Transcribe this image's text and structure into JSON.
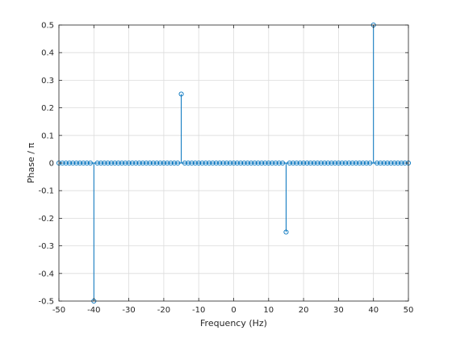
{
  "chart_data": {
    "type": "stem",
    "title": "",
    "xlabel": "Frequency (Hz)",
    "ylabel": "Phase / π",
    "xlim": [
      -50,
      50
    ],
    "ylim": [
      -0.5,
      0.5
    ],
    "grid": true,
    "xticks": [
      -50,
      -40,
      -30,
      -20,
      -10,
      0,
      10,
      20,
      30,
      40,
      50
    ],
    "xtick_labels": [
      "-50",
      "-40",
      "-30",
      "-20",
      "-10",
      "0",
      "10",
      "20",
      "30",
      "40",
      "50"
    ],
    "yticks": [
      -0.5,
      -0.4,
      -0.3,
      -0.2,
      -0.1,
      0,
      0.1,
      0.2,
      0.3,
      0.4,
      0.5
    ],
    "ytick_labels": [
      "-0.5",
      "-0.4",
      "-0.3",
      "-0.2",
      "-0.1",
      "0",
      "0.1",
      "0.2",
      "0.3",
      "0.4",
      "0.5"
    ],
    "series_color": "#0072bd",
    "x_start": -50,
    "x_end": 50,
    "x_step": 1,
    "baseline": 0,
    "nonzero_points": [
      {
        "x": -40,
        "y": -0.5
      },
      {
        "x": -15,
        "y": 0.25
      },
      {
        "x": 15,
        "y": -0.25
      },
      {
        "x": 40,
        "y": 0.5
      }
    ]
  }
}
